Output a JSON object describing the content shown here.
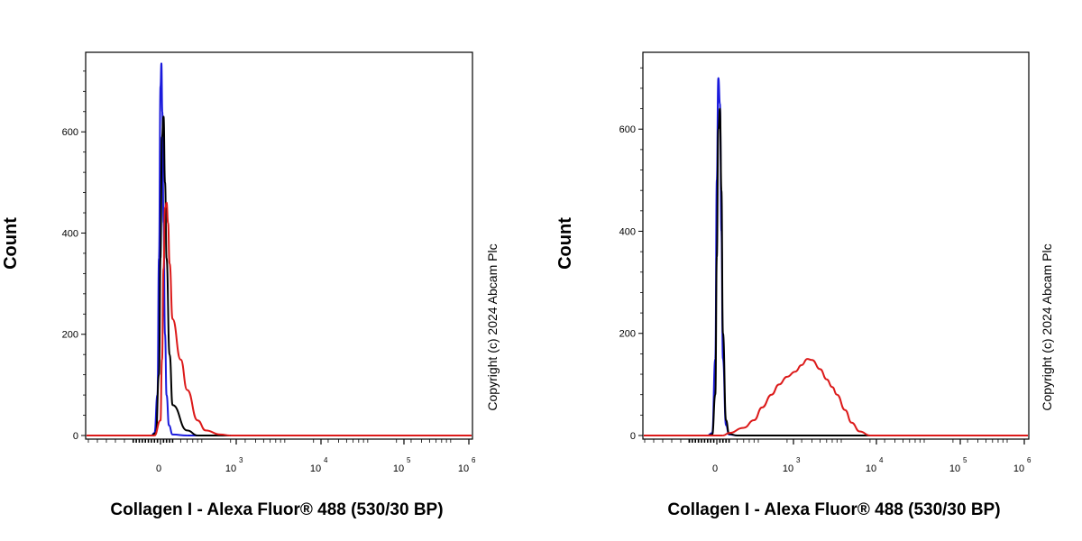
{
  "chart_data": [
    {
      "type": "line",
      "title": "",
      "xlabel": "Collagen I - Alexa Fluor® 488 (530/30 BP)",
      "ylabel": "Count",
      "copyright": "Copyright (c) 2024 Abcam Plc",
      "x_scale": "biexponential",
      "ylim": [
        0,
        760
      ],
      "y_ticks": [
        "0",
        "200",
        "400",
        "600"
      ],
      "x_ticks": [
        {
          "base": "0",
          "exp": ""
        },
        {
          "base": "10",
          "exp": "3"
        },
        {
          "base": "10",
          "exp": "4"
        },
        {
          "base": "10",
          "exp": "5"
        },
        {
          "base": "10",
          "exp": "6"
        }
      ],
      "grid": false,
      "series": [
        {
          "color": "#1a1adc",
          "x": [
            -300,
            -200,
            -100,
            -50,
            0,
            30,
            60,
            100,
            150,
            200,
            280,
            400,
            600
          ],
          "y": [
            0,
            5,
            80,
            350,
            690,
            735,
            640,
            420,
            200,
            80,
            20,
            2,
            0
          ]
        },
        {
          "color": "#000000",
          "x": [
            -300,
            -150,
            -50,
            0,
            50,
            100,
            150,
            200,
            300,
            400,
            600,
            800
          ],
          "y": [
            0,
            5,
            120,
            350,
            590,
            630,
            500,
            350,
            160,
            60,
            10,
            0
          ]
        },
        {
          "color": "#dc1a1a",
          "x": [
            -200,
            0,
            50,
            100,
            150,
            200,
            250,
            300,
            400,
            500,
            600,
            800,
            1000,
            1500,
            2000
          ],
          "y": [
            0,
            30,
            150,
            330,
            450,
            460,
            420,
            340,
            230,
            150,
            90,
            30,
            10,
            2,
            0
          ]
        }
      ]
    },
    {
      "type": "line",
      "title": "",
      "xlabel": "Collagen I - Alexa Fluor® 488 (530/30 BP)",
      "ylabel": "Count",
      "copyright": "Copyright (c) 2024 Abcam Plc",
      "x_scale": "biexponential",
      "ylim": [
        0,
        760
      ],
      "y_ticks": [
        "0",
        "200",
        "400",
        "600"
      ],
      "x_ticks": [
        {
          "base": "0",
          "exp": ""
        },
        {
          "base": "10",
          "exp": "3"
        },
        {
          "base": "10",
          "exp": "4"
        },
        {
          "base": "10",
          "exp": "5"
        },
        {
          "base": "10",
          "exp": "6"
        }
      ],
      "grid": false,
      "series": [
        {
          "color": "#1a1adc",
          "x": [
            -300,
            -150,
            -50,
            0,
            50,
            100,
            150,
            200,
            300,
            400,
            500
          ],
          "y": [
            0,
            5,
            150,
            500,
            700,
            650,
            400,
            150,
            20,
            2,
            0
          ]
        },
        {
          "color": "#000000",
          "x": [
            -300,
            -150,
            -50,
            0,
            50,
            100,
            150,
            200,
            300,
            400,
            500
          ],
          "y": [
            0,
            2,
            80,
            350,
            600,
            640,
            480,
            200,
            30,
            3,
            0
          ]
        },
        {
          "color": "#dc1a1a",
          "x": [
            200,
            400,
            600,
            800,
            1000,
            1300,
            1600,
            2000,
            2500,
            3000,
            3500,
            4000,
            5000,
            6000,
            7000,
            8000,
            10000,
            12000,
            15000,
            20000
          ],
          "y": [
            0,
            5,
            15,
            30,
            55,
            80,
            100,
            115,
            125,
            138,
            150,
            148,
            130,
            110,
            95,
            80,
            50,
            25,
            8,
            0
          ]
        }
      ]
    }
  ]
}
